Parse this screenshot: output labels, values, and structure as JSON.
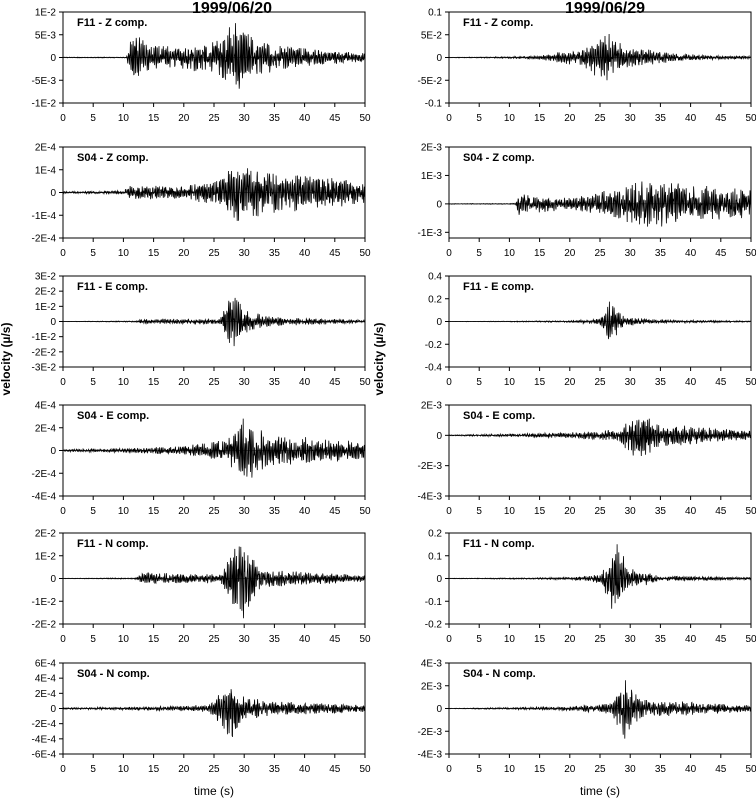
{
  "titles": [
    "1999/06/20",
    "1999/06/29"
  ],
  "ylabel": "velocity (µ/s)",
  "xlabel": "time (s)",
  "chart_data": [
    {
      "type": "line",
      "column": 0,
      "label": "F11 - Z comp.",
      "yticks": [
        "1E-2",
        "5E-3",
        "0",
        "-5E-3",
        "-1E-2"
      ],
      "ylim": [
        -0.01,
        0.01
      ],
      "xlim": [
        0,
        50
      ],
      "xticks": [
        0,
        5,
        10,
        15,
        20,
        25,
        30,
        35,
        40,
        45,
        50
      ],
      "envelope": [
        {
          "x": 0,
          "amp": 0.0001
        },
        {
          "x": 10.5,
          "amp": 0.0001
        },
        {
          "x": 11.5,
          "amp": 0.006
        },
        {
          "x": 14,
          "amp": 0.003
        },
        {
          "x": 20,
          "amp": 0.0025
        },
        {
          "x": 25,
          "amp": 0.004
        },
        {
          "x": 28.5,
          "amp": 0.0085
        },
        {
          "x": 32,
          "amp": 0.004
        },
        {
          "x": 40,
          "amp": 0.002
        },
        {
          "x": 50,
          "amp": 0.001
        }
      ]
    },
    {
      "type": "line",
      "column": 0,
      "label": "S04 - Z comp.",
      "yticks": [
        "2E-4",
        "1E-4",
        "0",
        "-1E-4",
        "-2E-4"
      ],
      "ylim": [
        -0.0002,
        0.0002
      ],
      "xlim": [
        0,
        50
      ],
      "xticks": [
        0,
        5,
        10,
        15,
        20,
        25,
        30,
        35,
        40,
        45,
        50
      ],
      "envelope": [
        {
          "x": 0,
          "amp": 5e-06
        },
        {
          "x": 10,
          "amp": 8e-06
        },
        {
          "x": 11,
          "amp": 3e-05
        },
        {
          "x": 20,
          "amp": 3e-05
        },
        {
          "x": 26,
          "amp": 6e-05
        },
        {
          "x": 29,
          "amp": 0.00014
        },
        {
          "x": 33,
          "amp": 0.0001
        },
        {
          "x": 40,
          "amp": 8e-05
        },
        {
          "x": 50,
          "amp": 5e-05
        }
      ]
    },
    {
      "type": "line",
      "column": 0,
      "label": "F11 - E comp.",
      "yticks": [
        "3E-2",
        "2E-2",
        "1E-2",
        "0",
        "-1E-2",
        "-2E-2",
        "-3E-2"
      ],
      "ylim": [
        -0.03,
        0.03
      ],
      "xlim": [
        0,
        50
      ],
      "xticks": [
        0,
        5,
        10,
        15,
        20,
        25,
        30,
        35,
        40,
        45,
        50
      ],
      "envelope": [
        {
          "x": 0,
          "amp": 0.0001
        },
        {
          "x": 12,
          "amp": 0.0004
        },
        {
          "x": 13,
          "amp": 0.0015
        },
        {
          "x": 26,
          "amp": 0.002
        },
        {
          "x": 28,
          "amp": 0.02
        },
        {
          "x": 30,
          "amp": 0.008
        },
        {
          "x": 35,
          "amp": 0.003
        },
        {
          "x": 50,
          "amp": 0.001
        }
      ]
    },
    {
      "type": "line",
      "column": 0,
      "label": "S04 - E comp.",
      "yticks": [
        "4E-4",
        "2E-4",
        "0",
        "-2E-4",
        "-4E-4"
      ],
      "ylim": [
        -0.0004,
        0.0004
      ],
      "xlim": [
        0,
        50
      ],
      "xticks": [
        0,
        5,
        10,
        15,
        20,
        25,
        30,
        35,
        40,
        45,
        50
      ],
      "envelope": [
        {
          "x": 0,
          "amp": 1e-05
        },
        {
          "x": 10,
          "amp": 2e-05
        },
        {
          "x": 20,
          "amp": 4e-05
        },
        {
          "x": 27,
          "amp": 0.0001
        },
        {
          "x": 30,
          "amp": 0.0003
        },
        {
          "x": 34,
          "amp": 0.00015
        },
        {
          "x": 50,
          "amp": 8e-05
        }
      ]
    },
    {
      "type": "line",
      "column": 0,
      "label": "F11 - N comp.",
      "yticks": [
        "2E-2",
        "1E-2",
        "0",
        "-1E-2",
        "-2E-2"
      ],
      "ylim": [
        -0.02,
        0.02
      ],
      "xlim": [
        0,
        50
      ],
      "xticks": [
        0,
        5,
        10,
        15,
        20,
        25,
        30,
        35,
        40,
        45,
        50
      ],
      "envelope": [
        {
          "x": 0,
          "amp": 0.0001
        },
        {
          "x": 12,
          "amp": 0.0003
        },
        {
          "x": 13,
          "amp": 0.0025
        },
        {
          "x": 26,
          "amp": 0.002
        },
        {
          "x": 28,
          "amp": 0.012
        },
        {
          "x": 30,
          "amp": 0.018
        },
        {
          "x": 33,
          "amp": 0.004
        },
        {
          "x": 50,
          "amp": 0.0015
        }
      ]
    },
    {
      "type": "line",
      "column": 0,
      "label": "S04 - N comp.",
      "yticks": [
        "6E-4",
        "4E-4",
        "2E-4",
        "0",
        "-2E-4",
        "-4E-4",
        "-6E-4"
      ],
      "ylim": [
        -0.0006,
        0.0006
      ],
      "xlim": [
        0,
        50
      ],
      "xticks": [
        0,
        5,
        10,
        15,
        20,
        25,
        30,
        35,
        40,
        45,
        50
      ],
      "envelope": [
        {
          "x": 0,
          "amp": 1e-05
        },
        {
          "x": 12,
          "amp": 2e-05
        },
        {
          "x": 24,
          "amp": 5e-05
        },
        {
          "x": 28,
          "amp": 0.00042
        },
        {
          "x": 30,
          "amp": 0.00015
        },
        {
          "x": 35,
          "amp": 0.0001
        },
        {
          "x": 50,
          "amp": 5e-05
        }
      ]
    },
    {
      "type": "line",
      "column": 1,
      "label": "F11 - Z comp.",
      "yticks": [
        "0.1",
        "5E-2",
        "0",
        "-5E-2",
        "-0.1"
      ],
      "ylim": [
        -0.1,
        0.1
      ],
      "xlim": [
        0,
        50
      ],
      "xticks": [
        0,
        5,
        10,
        15,
        20,
        25,
        30,
        35,
        40,
        45,
        50
      ],
      "envelope": [
        {
          "x": 0,
          "amp": 0.0005
        },
        {
          "x": 10,
          "amp": 0.002
        },
        {
          "x": 15,
          "amp": 0.005
        },
        {
          "x": 22,
          "amp": 0.02
        },
        {
          "x": 26,
          "amp": 0.06
        },
        {
          "x": 30,
          "amp": 0.025
        },
        {
          "x": 38,
          "amp": 0.008
        },
        {
          "x": 50,
          "amp": 0.003
        }
      ]
    },
    {
      "type": "line",
      "column": 1,
      "label": "S04 - Z comp.",
      "yticks": [
        "2E-3",
        "1E-3",
        "0",
        "-1E-3"
      ],
      "ylim": [
        -0.0012,
        0.002
      ],
      "xlim": [
        0,
        50
      ],
      "xticks": [
        0,
        5,
        10,
        15,
        20,
        25,
        30,
        35,
        40,
        45,
        50
      ],
      "envelope": [
        {
          "x": 0,
          "amp": 1e-05
        },
        {
          "x": 11,
          "amp": 2e-05
        },
        {
          "x": 11.5,
          "amp": 0.0004
        },
        {
          "x": 20,
          "amp": 0.0002
        },
        {
          "x": 28,
          "amp": 0.0006
        },
        {
          "x": 32,
          "amp": 0.0009
        },
        {
          "x": 40,
          "amp": 0.0007
        },
        {
          "x": 50,
          "amp": 0.0005
        }
      ]
    },
    {
      "type": "line",
      "column": 1,
      "label": "F11 - E comp.",
      "yticks": [
        "0.4",
        "0.2",
        "0",
        "-0.2",
        "-0.4"
      ],
      "ylim": [
        -0.4,
        0.4
      ],
      "xlim": [
        0,
        50
      ],
      "xticks": [
        0,
        5,
        10,
        15,
        20,
        25,
        30,
        35,
        40,
        45,
        50
      ],
      "envelope": [
        {
          "x": 0,
          "amp": 0.001
        },
        {
          "x": 11,
          "amp": 0.004
        },
        {
          "x": 20,
          "amp": 0.008
        },
        {
          "x": 25,
          "amp": 0.03
        },
        {
          "x": 26.5,
          "amp": 0.2
        },
        {
          "x": 29,
          "amp": 0.04
        },
        {
          "x": 35,
          "amp": 0.015
        },
        {
          "x": 50,
          "amp": 0.006
        }
      ]
    },
    {
      "type": "line",
      "column": 1,
      "label": "S04 - E comp.",
      "yticks": [
        "2E-3",
        "0",
        "-2E-3",
        "-4E-3"
      ],
      "ylim": [
        -0.004,
        0.002
      ],
      "xlim": [
        0,
        50
      ],
      "xticks": [
        0,
        5,
        10,
        15,
        20,
        25,
        30,
        35,
        40,
        45,
        50
      ],
      "envelope": [
        {
          "x": 0,
          "amp": 3e-05
        },
        {
          "x": 11,
          "amp": 0.0001
        },
        {
          "x": 20,
          "amp": 0.0002
        },
        {
          "x": 28,
          "amp": 0.0004
        },
        {
          "x": 31,
          "amp": 0.0017
        },
        {
          "x": 35,
          "amp": 0.0008
        },
        {
          "x": 50,
          "amp": 0.0003
        }
      ]
    },
    {
      "type": "line",
      "column": 1,
      "label": "F11 - N comp.",
      "yticks": [
        "0.2",
        "0.1",
        "0",
        "-0.1",
        "-0.2"
      ],
      "ylim": [
        -0.2,
        0.2
      ],
      "xlim": [
        0,
        50
      ],
      "xticks": [
        0,
        5,
        10,
        15,
        20,
        25,
        30,
        35,
        40,
        45,
        50
      ],
      "envelope": [
        {
          "x": 0,
          "amp": 0.001
        },
        {
          "x": 11,
          "amp": 0.003
        },
        {
          "x": 20,
          "amp": 0.005
        },
        {
          "x": 25,
          "amp": 0.02
        },
        {
          "x": 27.5,
          "amp": 0.17
        },
        {
          "x": 30,
          "amp": 0.05
        },
        {
          "x": 35,
          "amp": 0.012
        },
        {
          "x": 50,
          "amp": 0.005
        }
      ]
    },
    {
      "type": "line",
      "column": 1,
      "label": "S04 - N comp.",
      "yticks": [
        "4E-3",
        "2E-3",
        "0",
        "-2E-3",
        "-4E-3"
      ],
      "ylim": [
        -0.004,
        0.004
      ],
      "xlim": [
        0,
        50
      ],
      "xticks": [
        0,
        5,
        10,
        15,
        20,
        25,
        30,
        35,
        40,
        45,
        50
      ],
      "envelope": [
        {
          "x": 0,
          "amp": 2e-05
        },
        {
          "x": 11,
          "amp": 0.0001
        },
        {
          "x": 20,
          "amp": 0.0002
        },
        {
          "x": 27,
          "amp": 0.0005
        },
        {
          "x": 29,
          "amp": 0.0028
        },
        {
          "x": 32,
          "amp": 0.0008
        },
        {
          "x": 40,
          "amp": 0.0006
        },
        {
          "x": 50,
          "amp": 0.0003
        }
      ]
    }
  ]
}
